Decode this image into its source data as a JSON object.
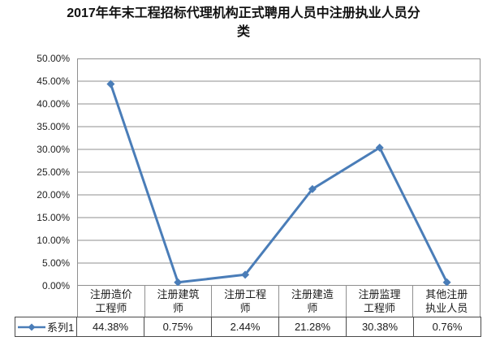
{
  "chart_data": {
    "type": "line",
    "title": "2017年年末工程招标代理机构正式聘用人员中注册执业人员分类",
    "title_lines": [
      "2017年年末工程招标代理机构正式聘用人员中注册执业人员分",
      "类"
    ],
    "categories": [
      "注册造价工程师",
      "注册建筑师",
      "注册工程师",
      "注册建造师",
      "注册监理工程师",
      "其他注册执业人员"
    ],
    "category_display_lines": [
      [
        "注册造价",
        "工程师"
      ],
      [
        "注册建筑",
        "师"
      ],
      [
        "注册工程",
        "师"
      ],
      [
        "注册建造",
        "师"
      ],
      [
        "注册监理",
        "工程师"
      ],
      [
        "其他注册",
        "执业人员"
      ]
    ],
    "series": [
      {
        "name": "系列1",
        "values": [
          44.38,
          0.75,
          2.44,
          21.28,
          30.38,
          0.76
        ],
        "value_labels": [
          "44.38%",
          "0.75%",
          "2.44%",
          "21.28%",
          "30.38%",
          "0.76%"
        ]
      }
    ],
    "xlabel": "",
    "ylabel": "",
    "ylim": [
      0,
      50
    ],
    "y_tick_values": [
      0,
      5,
      10,
      15,
      20,
      25,
      30,
      35,
      40,
      45,
      50
    ],
    "y_tick_labels": [
      "0.00%",
      "5.00%",
      "10.00%",
      "15.00%",
      "20.00%",
      "25.00%",
      "30.00%",
      "35.00%",
      "40.00%",
      "45.00%",
      "50.00%"
    ],
    "grid": true,
    "legend_position": "bottom-left",
    "colors": {
      "series_line": "#4a7db8",
      "grid_line": "#8f8f8f",
      "plot_border": "#8f8f8f",
      "table_border_light": "#8f8f8f",
      "table_border_dark": "#4a4a4a",
      "text": "#1a1a1a",
      "background": "#ffffff"
    }
  }
}
